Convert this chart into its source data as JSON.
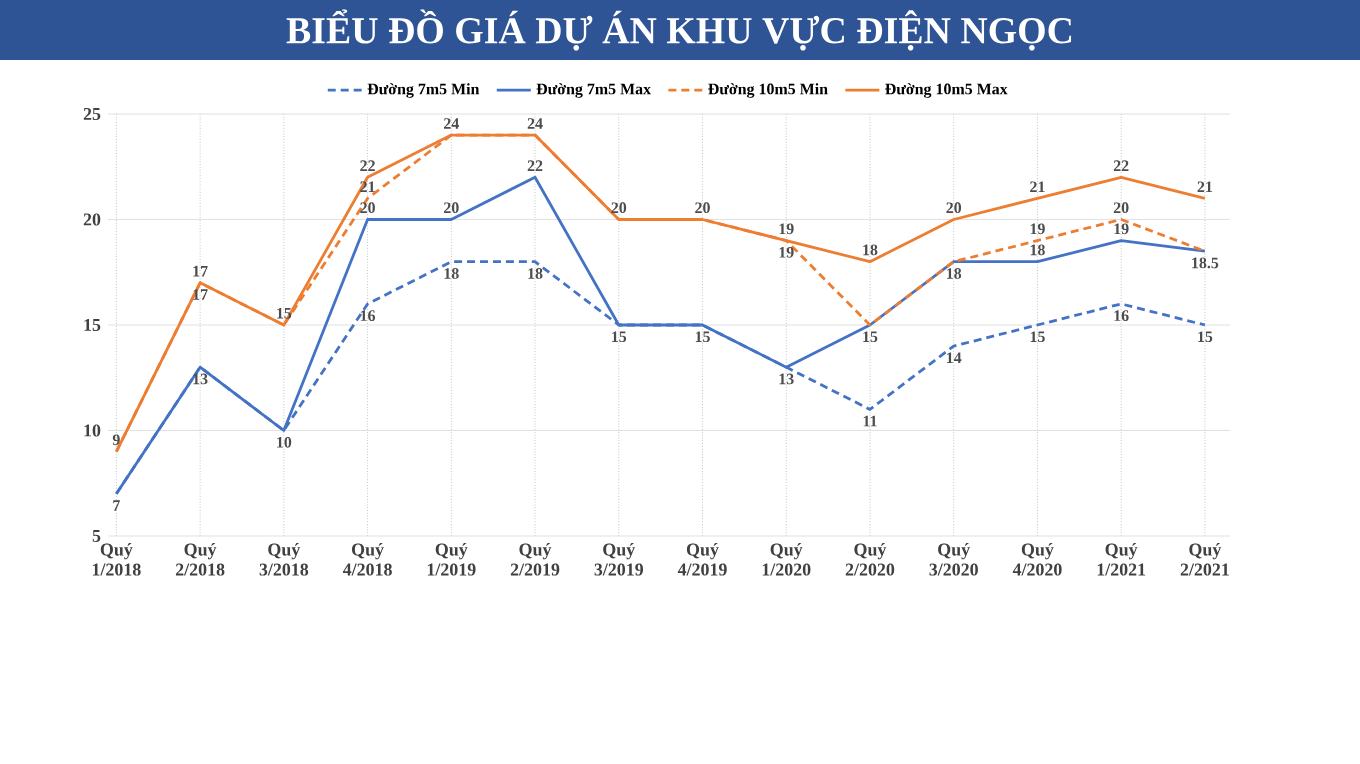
{
  "chart_data": {
    "type": "line",
    "title": "BIỂU ĐỒ GIÁ DỰ ÁN KHU VỰC ĐIỆN NGỌC",
    "categories": [
      "Quý 1/2018",
      "Quý 2/2018",
      "Quý 3/2018",
      "Quý 4/2018",
      "Quý 1/2019",
      "Quý 2/2019",
      "Quý 3/2019",
      "Quý 4/2019",
      "Quý 1/2020",
      "Quý 2/2020",
      "Quý 3/2020",
      "Quý 4/2020",
      "Quý 1/2021",
      "Quý 2/2021"
    ],
    "series": [
      {
        "name": "Đường 7m5 Min",
        "color": "#4472c4",
        "line_style": "dashed",
        "values": [
          7,
          13,
          10,
          16,
          18,
          18,
          15,
          15,
          13,
          11,
          14,
          15,
          16,
          15
        ],
        "value_labels": [
          "7",
          "13",
          "10",
          "16",
          "18",
          "18",
          "15",
          "15",
          "13",
          "11",
          "14",
          "15",
          "16",
          "15"
        ]
      },
      {
        "name": "Đường 7m5 Max",
        "color": "#4472c4",
        "line_style": "solid",
        "values": [
          7,
          13,
          10,
          20,
          20,
          22,
          15,
          15,
          13,
          15,
          18,
          18,
          19,
          18.5
        ],
        "value_labels": [
          null,
          null,
          null,
          "20",
          "20",
          "22",
          null,
          null,
          null,
          null,
          null,
          "18",
          "19",
          null
        ]
      },
      {
        "name": "Đường 10m5 Min",
        "color": "#ed7d31",
        "line_style": "dashed",
        "values": [
          9,
          17,
          15,
          21,
          24,
          24,
          20,
          20,
          19,
          15,
          18,
          19,
          20,
          18.5
        ],
        "value_labels": [
          null,
          "17",
          null,
          "21",
          null,
          null,
          null,
          null,
          "19",
          "15",
          "18",
          "19",
          "20",
          "18.5"
        ]
      },
      {
        "name": "Đường 10m5 Max",
        "color": "#ed7d31",
        "line_style": "solid",
        "values": [
          9,
          17,
          15,
          22,
          24,
          24,
          20,
          20,
          19,
          18,
          20,
          21,
          22,
          21
        ],
        "value_labels": [
          "9",
          "17",
          "15",
          "22",
          "24",
          "24",
          "20",
          "20",
          "19",
          "18",
          "20",
          "21",
          "22",
          "21"
        ]
      }
    ],
    "ylim": [
      5,
      25
    ],
    "yticks": [
      5,
      10,
      15,
      20,
      25
    ],
    "grid": true,
    "legend": "top",
    "marker": "none"
  }
}
